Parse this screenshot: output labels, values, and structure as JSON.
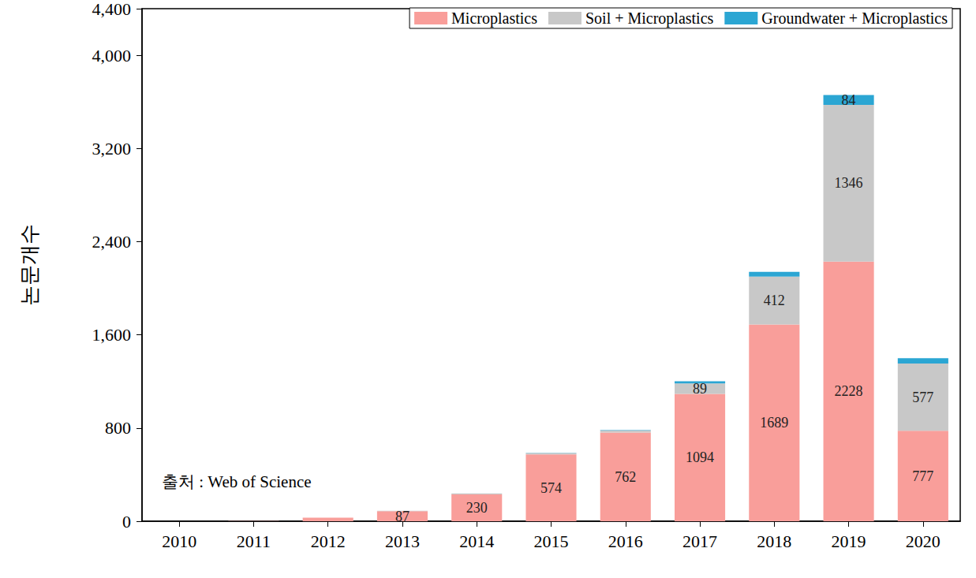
{
  "chart_data": {
    "type": "bar",
    "y_label": "논문개수",
    "annotation": "출처 : Web of Science",
    "categories": [
      "2010",
      "2011",
      "2012",
      "2013",
      "2014",
      "2015",
      "2016",
      "2017",
      "2018",
      "2019",
      "2020"
    ],
    "series": [
      {
        "name": "Microplastics",
        "color": "#f99e9a",
        "values": [
          0,
          2,
          30,
          87,
          230,
          574,
          762,
          1094,
          1689,
          2228,
          777
        ],
        "value_labels": [
          null,
          null,
          null,
          "87",
          "230",
          "574",
          "762",
          "1094",
          "1689",
          "2228",
          "777"
        ]
      },
      {
        "name": "Soil + Microplastics",
        "color": "#c8c8c8",
        "values": [
          0,
          0,
          0,
          3,
          8,
          12,
          18,
          89,
          412,
          1346,
          577
        ],
        "value_labels": [
          null,
          null,
          null,
          null,
          null,
          null,
          null,
          "89",
          "412",
          "1346",
          "577"
        ]
      },
      {
        "name": "Groundwater + Microplastics",
        "color": "#2ba6d3",
        "values": [
          0,
          0,
          0,
          0,
          0,
          2,
          3,
          18,
          40,
          84,
          45
        ],
        "value_labels": [
          null,
          null,
          null,
          null,
          null,
          null,
          null,
          null,
          null,
          "84",
          null
        ]
      }
    ],
    "ylim": [
      0,
      4400
    ],
    "yticks": [
      0,
      800,
      1600,
      2400,
      3200,
      4000
    ],
    "stacked": true,
    "grid": false,
    "legend": "upper right",
    "data_labels": true
  }
}
